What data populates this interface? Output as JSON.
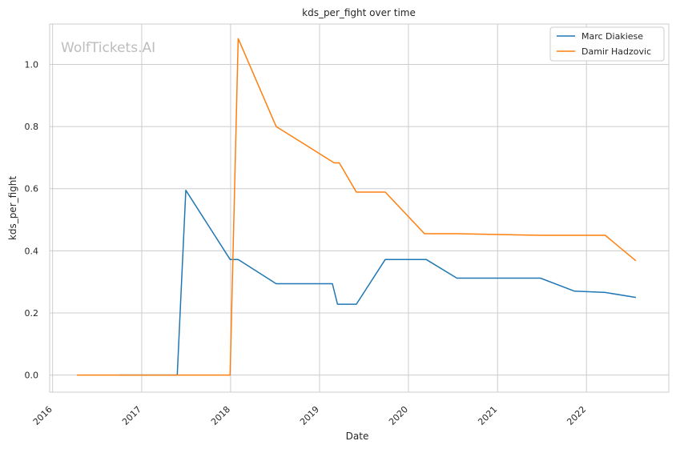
{
  "watermark": "WolfTickets.AI",
  "chart_data": {
    "type": "line",
    "title": "kds_per_fight over time",
    "xlabel": "Date",
    "ylabel": "kds_per_fight",
    "x_axis_type": "date",
    "xlim": [
      "2015-12-20",
      "2022-12-05"
    ],
    "ylim": [
      -0.055,
      1.13
    ],
    "x_ticks": [
      "2016-01-01",
      "2017-01-01",
      "2018-01-01",
      "2019-01-01",
      "2020-01-01",
      "2021-01-01",
      "2022-01-01"
    ],
    "x_tick_labels": [
      "2016",
      "2017",
      "2018",
      "2019",
      "2020",
      "2021",
      "2022"
    ],
    "y_ticks": [
      0.0,
      0.2,
      0.4,
      0.6,
      0.8,
      1.0
    ],
    "y_tick_labels": [
      "0.0",
      "0.2",
      "0.4",
      "0.6",
      "0.8",
      "1.0"
    ],
    "grid": true,
    "legend_position": "top-right",
    "series": [
      {
        "name": "Marc Diakiese",
        "color": "#1f77b4",
        "points": [
          [
            "2016-10-01",
            0.0
          ],
          [
            "2017-05-27",
            0.0
          ],
          [
            "2017-07-01",
            0.595
          ],
          [
            "2017-12-30",
            0.372
          ],
          [
            "2018-02-01",
            0.372
          ],
          [
            "2018-07-07",
            0.294
          ],
          [
            "2019-02-23",
            0.294
          ],
          [
            "2019-03-16",
            0.228
          ],
          [
            "2019-06-01",
            0.228
          ],
          [
            "2019-09-28",
            0.372
          ],
          [
            "2020-03-14",
            0.372
          ],
          [
            "2020-07-18",
            0.312
          ],
          [
            "2021-06-26",
            0.312
          ],
          [
            "2021-11-13",
            0.27
          ],
          [
            "2022-03-19",
            0.266
          ],
          [
            "2022-07-23",
            0.25
          ]
        ]
      },
      {
        "name": "Damir Hadzovic",
        "color": "#ff7f0e",
        "points": [
          [
            "2016-04-10",
            0.0
          ],
          [
            "2017-12-30",
            0.0
          ],
          [
            "2018-02-01",
            1.083
          ],
          [
            "2018-07-07",
            0.8
          ],
          [
            "2019-03-02",
            0.683
          ],
          [
            "2019-03-23",
            0.683
          ],
          [
            "2019-06-01",
            0.589
          ],
          [
            "2019-09-28",
            0.589
          ],
          [
            "2020-03-07",
            0.455
          ],
          [
            "2020-07-18",
            0.455
          ],
          [
            "2021-06-26",
            0.45
          ],
          [
            "2022-03-19",
            0.45
          ],
          [
            "2022-07-23",
            0.368
          ]
        ]
      }
    ]
  }
}
